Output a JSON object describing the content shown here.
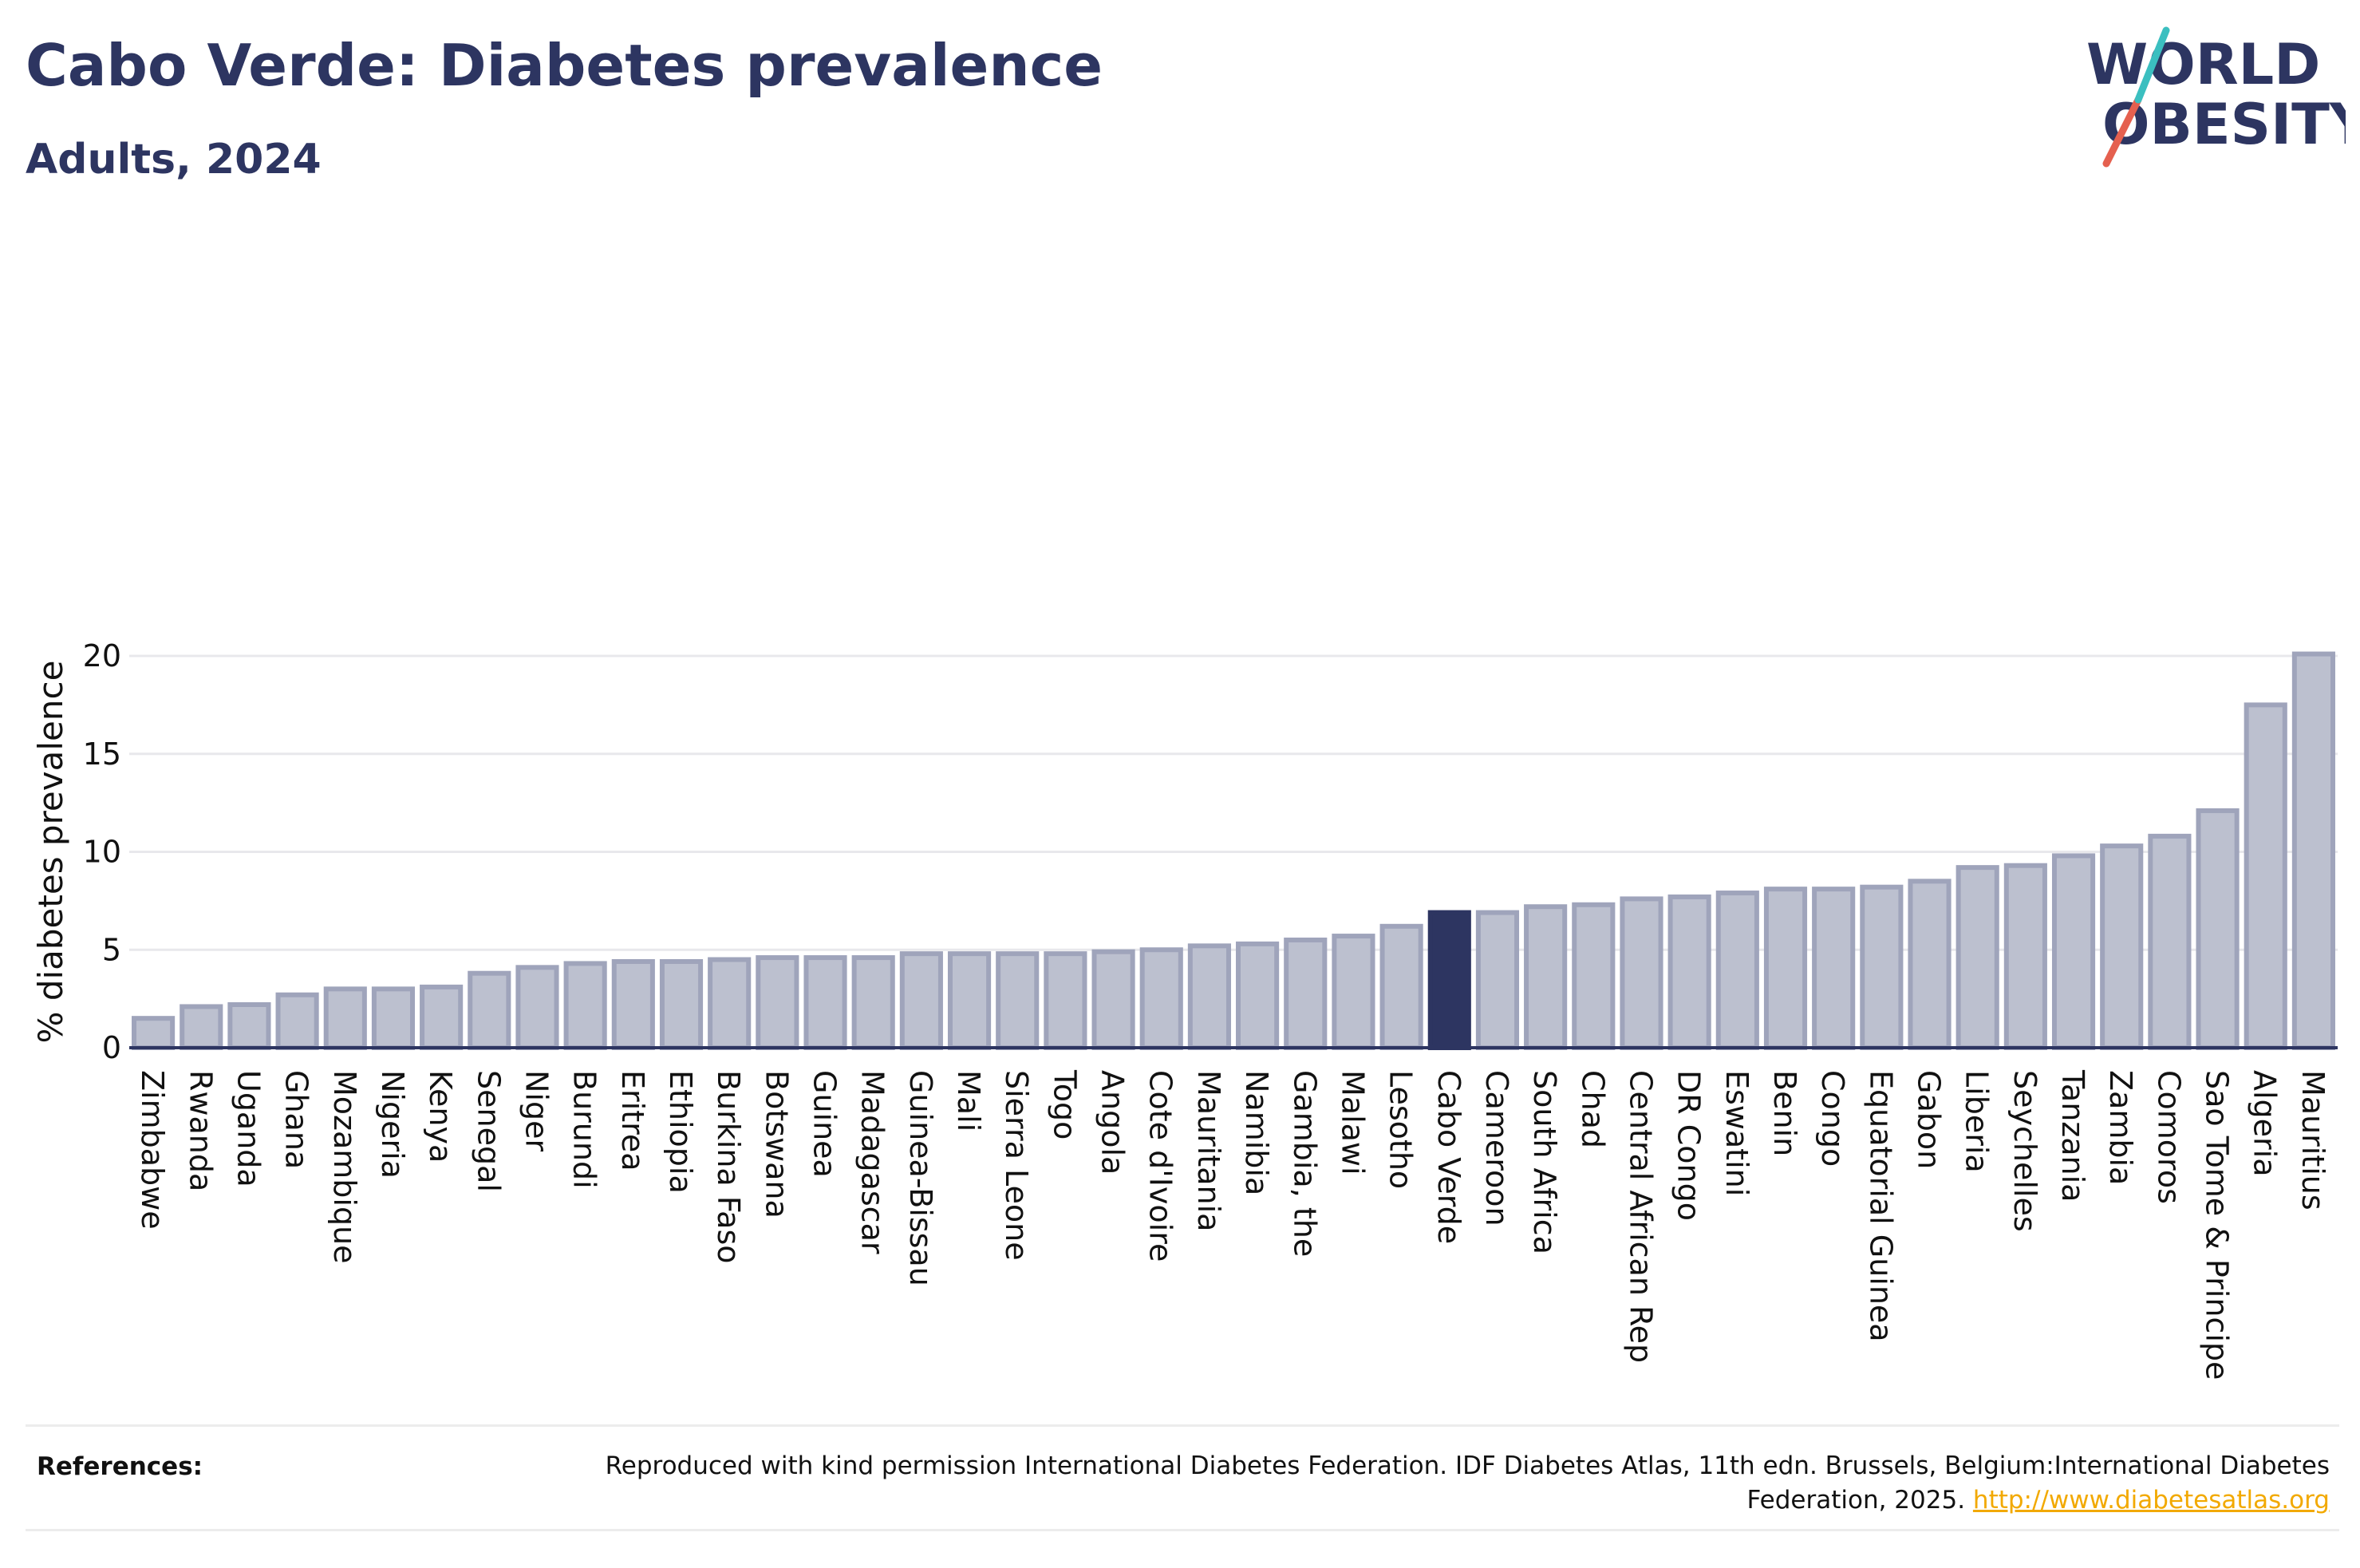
{
  "header": {
    "title": "Cabo Verde: Diabetes prevalence",
    "subtitle": "Adults, 2024"
  },
  "logo": {
    "line1": "WORLD",
    "line2": "OBESITY"
  },
  "colors": {
    "bar": "#bcc0cf",
    "bar_stroke": "#9fa4bb",
    "highlight": "#2d3561",
    "grid": "#e8e8ec",
    "axis": "#2d3561",
    "logo_slash_red": "#e5604f",
    "logo_slash_teal": "#3bbfc0"
  },
  "chart_data": {
    "type": "bar",
    "title": "Cabo Verde: Diabetes prevalence",
    "subtitle": "Adults, 2024",
    "ylabel": "% diabetes prevalence",
    "xlabel": "",
    "ylim": [
      0,
      21
    ],
    "yticks": [
      0,
      5,
      10,
      15,
      20
    ],
    "grid": true,
    "highlight": "Cabo Verde",
    "categories": [
      "Zimbabwe",
      "Rwanda",
      "Uganda",
      "Ghana",
      "Mozambique",
      "Nigeria",
      "Kenya",
      "Senegal",
      "Niger",
      "Burundi",
      "Eritrea",
      "Ethiopia",
      "Burkina Faso",
      "Botswana",
      "Guinea",
      "Madagascar",
      "Guinea-Bissau",
      "Mali",
      "Sierra Leone",
      "Togo",
      "Angola",
      "Cote d'Ivoire",
      "Mauritania",
      "Namibia",
      "Gambia, the",
      "Malawi",
      "Lesotho",
      "Cabo Verde",
      "Cameroon",
      "South Africa",
      "Chad",
      "Central African Rep",
      "DR Congo",
      "Eswatini",
      "Benin",
      "Congo",
      "Equatorial Guinea",
      "Gabon",
      "Liberia",
      "Seychelles",
      "Tanzania",
      "Zambia",
      "Comoros",
      "Sao Tome & Principe",
      "Algeria",
      "Mauritius"
    ],
    "values": [
      1.5,
      2.1,
      2.2,
      2.7,
      3.0,
      3.0,
      3.1,
      3.8,
      4.1,
      4.3,
      4.4,
      4.4,
      4.5,
      4.6,
      4.6,
      4.6,
      4.8,
      4.8,
      4.8,
      4.8,
      4.9,
      5.0,
      5.2,
      5.3,
      5.5,
      5.7,
      6.2,
      6.9,
      6.9,
      7.2,
      7.3,
      7.6,
      7.7,
      7.9,
      8.1,
      8.1,
      8.2,
      8.5,
      9.2,
      9.3,
      9.8,
      10.3,
      10.8,
      12.1,
      17.5,
      20.1
    ]
  },
  "references": {
    "label": "References:",
    "text": "Reproduced with kind permission International Diabetes Federation. IDF Diabetes Atlas, 11th edn. Brussels, Belgium:International Diabetes Federation, 2025.",
    "link": "http://www.diabetesatlas.org"
  }
}
